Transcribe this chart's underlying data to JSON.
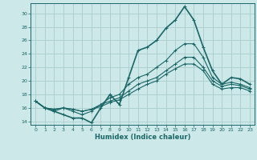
{
  "title": "",
  "xlabel": "Humidex (Indice chaleur)",
  "bg_color": "#cce8e8",
  "grid_color": "#aacccc",
  "line_color": "#1a6666",
  "xlim": [
    -0.5,
    23.5
  ],
  "ylim": [
    13.5,
    31.5
  ],
  "yticks": [
    14,
    16,
    18,
    20,
    22,
    24,
    26,
    28,
    30
  ],
  "xticks": [
    0,
    1,
    2,
    3,
    4,
    5,
    6,
    7,
    8,
    9,
    10,
    11,
    12,
    13,
    14,
    15,
    16,
    17,
    18,
    19,
    20,
    21,
    22,
    23
  ],
  "series": [
    [
      17.0,
      16.0,
      15.5,
      15.0,
      14.5,
      14.5,
      13.8,
      16.0,
      18.0,
      16.5,
      20.5,
      24.5,
      25.0,
      26.0,
      27.8,
      29.0,
      31.0,
      29.0,
      25.0,
      21.5,
      19.5,
      20.5,
      20.3,
      19.5
    ],
    [
      17.0,
      16.0,
      15.5,
      16.0,
      15.5,
      15.0,
      15.5,
      16.5,
      17.5,
      18.0,
      19.5,
      20.5,
      21.0,
      22.0,
      23.0,
      24.5,
      25.5,
      25.5,
      23.5,
      20.5,
      19.5,
      19.8,
      19.5,
      19.0
    ],
    [
      17.0,
      16.0,
      15.8,
      16.0,
      15.8,
      15.5,
      15.8,
      16.5,
      17.0,
      17.5,
      18.5,
      19.5,
      20.0,
      20.5,
      21.5,
      22.5,
      23.5,
      23.5,
      22.0,
      20.0,
      19.2,
      19.5,
      19.3,
      18.8
    ],
    [
      17.0,
      16.0,
      15.8,
      16.0,
      15.8,
      15.5,
      15.8,
      16.2,
      16.8,
      17.2,
      18.0,
      18.8,
      19.5,
      20.0,
      21.0,
      21.8,
      22.5,
      22.5,
      21.5,
      19.5,
      18.8,
      19.0,
      19.0,
      18.5
    ]
  ]
}
